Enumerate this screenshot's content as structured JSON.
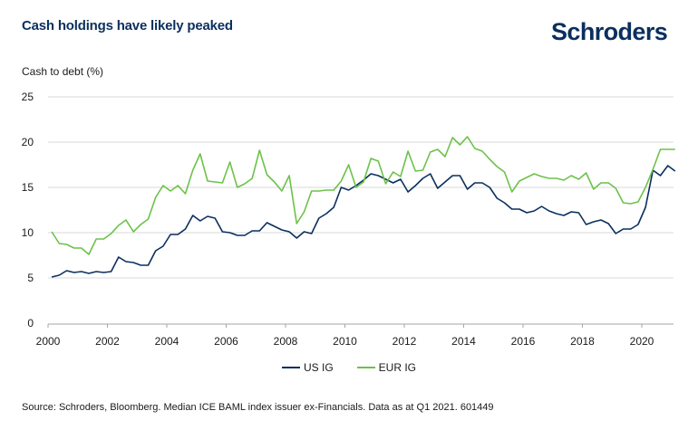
{
  "header": {
    "title": "Cash holdings have likely peaked",
    "brand": "Schroders"
  },
  "footer": {
    "source": "Source: Schroders, Bloomberg. Median ICE BAML index issuer ex-Financials. Data as at Q1 2021. 601449"
  },
  "colors": {
    "brand": "#0b2f5e",
    "us_ig": "#0b2f5e",
    "eur_ig": "#6cc24a",
    "grid": "#d9d9d9",
    "axis": "#a6a6a6"
  },
  "chart_data": {
    "type": "line",
    "title": "Cash holdings have likely peaked",
    "xlabel": "",
    "ylabel": "Cash to debt (%)",
    "ylim": [
      0,
      25
    ],
    "yticks": [
      0,
      5,
      10,
      15,
      20,
      25
    ],
    "xlim": [
      2000,
      2021.25
    ],
    "xticks": [
      2000,
      2002,
      2004,
      2006,
      2008,
      2010,
      2012,
      2014,
      2016,
      2018,
      2020
    ],
    "grid": "horizontal",
    "legend": "bottom-center",
    "frequency": "quarterly",
    "x_start": "2000 Q1",
    "x_end": "2021 Q1",
    "series": [
      {
        "name": "US IG",
        "color": "#0b2f5e",
        "values": [
          5.1,
          5.3,
          5.8,
          5.6,
          5.7,
          5.5,
          5.7,
          5.6,
          5.7,
          7.3,
          6.8,
          6.7,
          6.4,
          6.4,
          8.0,
          8.5,
          9.8,
          9.8,
          10.4,
          11.9,
          11.3,
          11.8,
          11.6,
          10.1,
          10.0,
          9.7,
          9.7,
          10.2,
          10.2,
          11.1,
          10.7,
          10.3,
          10.1,
          9.4,
          10.1,
          9.9,
          11.6,
          12.1,
          12.8,
          15.0,
          14.7,
          15.2,
          15.8,
          16.5,
          16.3,
          15.9,
          15.5,
          15.9,
          14.5,
          15.2,
          16.0,
          16.5,
          14.9,
          15.6,
          16.3,
          16.3,
          14.8,
          15.5,
          15.5,
          15.0,
          13.8,
          13.3,
          12.6,
          12.6,
          12.2,
          12.4,
          12.9,
          12.4,
          12.1,
          11.9,
          12.3,
          12.2,
          10.9,
          11.2,
          11.4,
          11.0,
          9.9,
          10.4,
          10.4,
          10.9,
          12.8,
          16.9,
          16.3,
          17.4,
          16.8
        ]
      },
      {
        "name": "EUR IG",
        "color": "#6cc24a",
        "values": [
          10.1,
          8.8,
          8.7,
          8.3,
          8.3,
          7.6,
          9.3,
          9.3,
          9.9,
          10.8,
          11.4,
          10.1,
          10.9,
          11.5,
          13.9,
          15.2,
          14.6,
          15.2,
          14.3,
          16.9,
          18.7,
          15.7,
          15.6,
          15.5,
          17.8,
          15.0,
          15.4,
          16.0,
          19.1,
          16.4,
          15.6,
          14.6,
          16.3,
          11.0,
          12.3,
          14.6,
          14.6,
          14.7,
          14.7,
          15.7,
          17.5,
          15.0,
          15.6,
          18.2,
          17.9,
          15.4,
          16.7,
          16.2,
          19.0,
          16.8,
          16.9,
          18.9,
          19.2,
          18.4,
          20.5,
          19.7,
          20.6,
          19.3,
          19.0,
          18.1,
          17.3,
          16.7,
          14.5,
          15.7,
          16.1,
          16.5,
          16.2,
          16.0,
          16.0,
          15.8,
          16.3,
          15.9,
          16.6,
          14.8,
          15.5,
          15.5,
          14.9,
          13.3,
          13.2,
          13.4,
          15.0,
          17.0,
          19.2,
          19.2,
          19.2
        ]
      }
    ]
  }
}
